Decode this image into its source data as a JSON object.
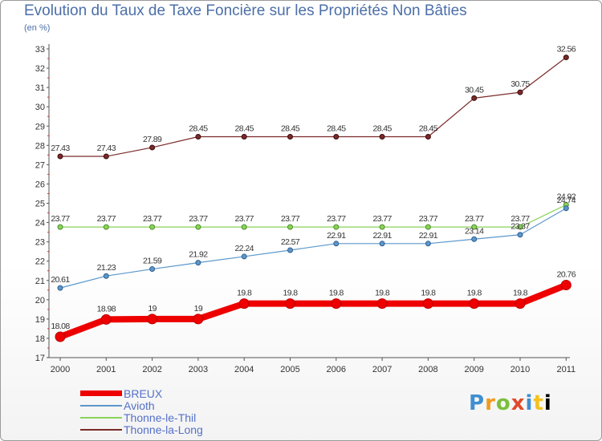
{
  "chart_data": {
    "type": "line",
    "title": "Evolution du Taux de Taxe Foncière sur les Propriétés Non Bâties",
    "subtitle": "(en %)",
    "x": [
      "2000",
      "2001",
      "2002",
      "2003",
      "2004",
      "2005",
      "2006",
      "2007",
      "2008",
      "2009",
      "2010",
      "2011"
    ],
    "ylim": [
      17,
      33
    ],
    "yticks": [
      17,
      18,
      19,
      20,
      21,
      22,
      23,
      24,
      25,
      26,
      27,
      28,
      29,
      30,
      31,
      32,
      33
    ],
    "grid": false,
    "legend_position": "bottom-left",
    "series": [
      {
        "name": "BREUX",
        "color": "#ee0000",
        "values": [
          18.08,
          18.98,
          19,
          19,
          19.8,
          19.8,
          19.8,
          19.8,
          19.8,
          19.8,
          19.8,
          20.76
        ],
        "labels": [
          "18.08",
          "18.98",
          "19",
          "19",
          "19.8",
          "19.8",
          "19.8",
          "19.8",
          "19.8",
          "19.8",
          "19.8",
          "20.76"
        ]
      },
      {
        "name": "Avioth",
        "color": "#5b97cb",
        "values": [
          20.61,
          21.23,
          21.59,
          21.92,
          22.24,
          22.57,
          22.91,
          22.91,
          22.91,
          23.14,
          23.37,
          24.74
        ],
        "labels": [
          "20.61",
          "21.23",
          "21.59",
          "21.92",
          "22.24",
          "22.57",
          "22.91",
          "22.91",
          "22.91",
          "23.14",
          "23.37",
          "24.74"
        ]
      },
      {
        "name": "Thonne-le-Thil",
        "color": "#8ad35a",
        "values": [
          23.77,
          23.77,
          23.77,
          23.77,
          23.77,
          23.77,
          23.77,
          23.77,
          23.77,
          23.77,
          23.77,
          24.92
        ],
        "labels": [
          "23.77",
          "23.77",
          "23.77",
          "23.77",
          "23.77",
          "23.77",
          "23.77",
          "23.77",
          "23.77",
          "23.77",
          "23.77",
          "24.92"
        ]
      },
      {
        "name": "Thonne-la-Long",
        "color": "#7b2a2a",
        "values": [
          27.43,
          27.43,
          27.89,
          28.45,
          28.45,
          28.45,
          28.45,
          28.45,
          28.45,
          30.45,
          30.75,
          32.56
        ],
        "labels": [
          "27.43",
          "27.43",
          "27.89",
          "28.45",
          "28.45",
          "28.45",
          "28.45",
          "28.45",
          "28.45",
          "30.45",
          "30.75",
          "32.56"
        ]
      }
    ]
  },
  "logo": {
    "letters": [
      "P",
      "r",
      "o",
      "x",
      "i",
      "t",
      "i"
    ]
  }
}
